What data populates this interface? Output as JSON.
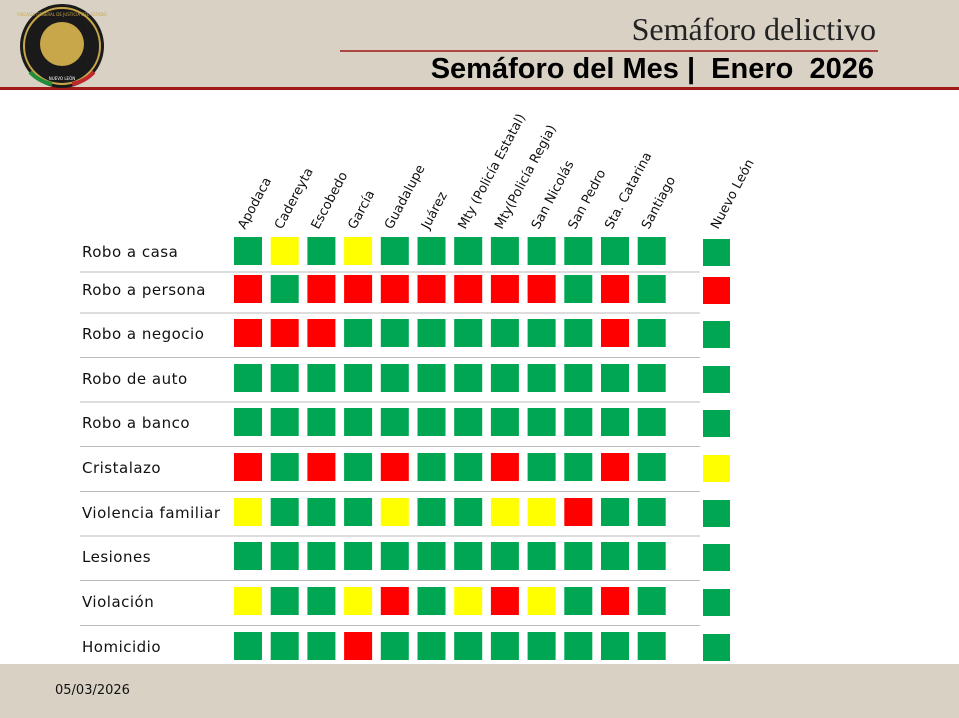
{
  "header": {
    "title": "Semáforo delictivo",
    "subtitle": "Semáforo del Mes |  Enero  2026",
    "logo_text": [
      "FISCALÍA GENERAL DE JUSTICIA DEL ESTADO",
      "NUEVO LEÓN"
    ]
  },
  "table": {
    "columns": [
      "Apodaca",
      "Cadereyta",
      "Escobedo",
      "García",
      "Guadalupe",
      "Juárez",
      "Mty (Policía Estatal)",
      "Mty(Policía Regia)",
      "San Nicolás",
      "San Pedro",
      "Sta. Catarina",
      "Santiago"
    ],
    "total_column": "Nuevo León",
    "rows": [
      {
        "label": "Robo a casa",
        "cells": [
          "#00a651",
          "#ffff00",
          "#00a651",
          "#ffff00",
          "#00a651",
          "#00a651",
          "#00a651",
          "#00a651",
          "#00a651",
          "#00a651",
          "#00a651",
          "#00a651"
        ],
        "total": "#00a651"
      },
      {
        "label": "Robo a persona",
        "cells": [
          "#ff0000",
          "#00a651",
          "#ff0000",
          "#ff0000",
          "#ff0000",
          "#ff0000",
          "#ff0000",
          "#ff0000",
          "#ff0000",
          "#00a651",
          "#ff0000",
          "#00a651"
        ],
        "total": "#ff0000"
      },
      {
        "label": "Robo a negocio",
        "cells": [
          "#ff0000",
          "#ff0000",
          "#ff0000",
          "#00a651",
          "#00a651",
          "#00a651",
          "#00a651",
          "#00a651",
          "#00a651",
          "#00a651",
          "#ff0000",
          "#00a651"
        ],
        "total": "#00a651"
      },
      {
        "label": "Robo de auto",
        "cells": [
          "#00a651",
          "#00a651",
          "#00a651",
          "#00a651",
          "#00a651",
          "#00a651",
          "#00a651",
          "#00a651",
          "#00a651",
          "#00a651",
          "#00a651",
          "#00a651"
        ],
        "total": "#00a651"
      },
      {
        "label": "Robo a banco",
        "cells": [
          "#00a651",
          "#00a651",
          "#00a651",
          "#00a651",
          "#00a651",
          "#00a651",
          "#00a651",
          "#00a651",
          "#00a651",
          "#00a651",
          "#00a651",
          "#00a651"
        ],
        "total": "#00a651"
      },
      {
        "label": "Cristalazo",
        "cells": [
          "#ff0000",
          "#00a651",
          "#ff0000",
          "#00a651",
          "#ff0000",
          "#00a651",
          "#00a651",
          "#ff0000",
          "#00a651",
          "#00a651",
          "#ff0000",
          "#00a651"
        ],
        "total": "#ffff00"
      },
      {
        "label": "Violencia familiar",
        "cells": [
          "#ffff00",
          "#00a651",
          "#00a651",
          "#00a651",
          "#ffff00",
          "#00a651",
          "#00a651",
          "#ffff00",
          "#ffff00",
          "#ff0000",
          "#00a651",
          "#00a651"
        ],
        "total": "#00a651"
      },
      {
        "label": "Lesiones",
        "cells": [
          "#00a651",
          "#00a651",
          "#00a651",
          "#00a651",
          "#00a651",
          "#00a651",
          "#00a651",
          "#00a651",
          "#00a651",
          "#00a651",
          "#00a651",
          "#00a651"
        ],
        "total": "#00a651"
      },
      {
        "label": "Violación",
        "cells": [
          "#ffff00",
          "#00a651",
          "#00a651",
          "#ffff00",
          "#ff0000",
          "#00a651",
          "#ffff00",
          "#ff0000",
          "#ffff00",
          "#00a651",
          "#ff0000",
          "#00a651"
        ],
        "total": "#00a651"
      },
      {
        "label": "Homicidio",
        "cells": [
          "#00a651",
          "#00a651",
          "#00a651",
          "#ff0000",
          "#00a651",
          "#00a651",
          "#00a651",
          "#00a651",
          "#00a651",
          "#00a651",
          "#00a651",
          "#00a651"
        ],
        "total": "#00a651"
      }
    ]
  },
  "footer": {
    "date": "05/03/2026"
  }
}
